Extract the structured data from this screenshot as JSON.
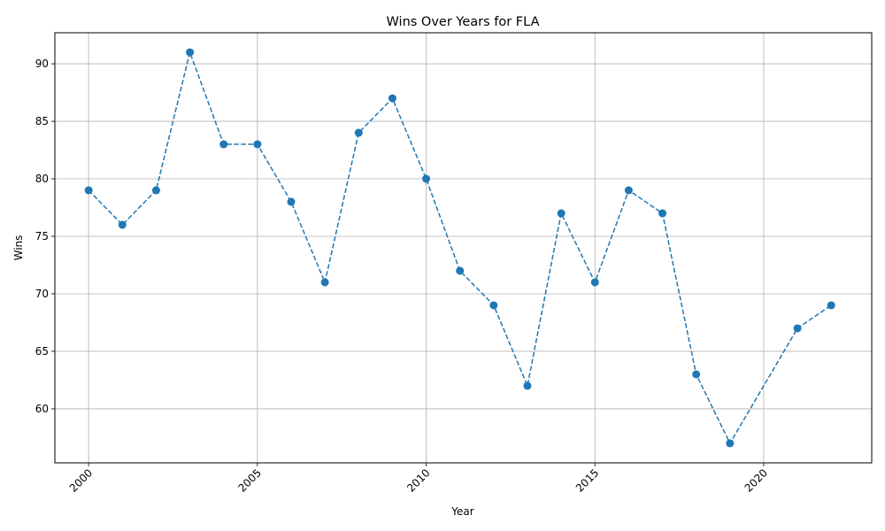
{
  "chart_data": {
    "type": "line",
    "title": "Wins Over Years for FLA",
    "xlabel": "Year",
    "ylabel": "Wins",
    "xlim": [
      1999,
      2023.2
    ],
    "ylim": [
      55.3,
      92.7
    ],
    "xticks": [
      2000,
      2005,
      2010,
      2015,
      2020
    ],
    "xtick_labels": [
      "2000",
      "2005",
      "2010",
      "2015",
      "2020"
    ],
    "yticks": [
      60,
      65,
      70,
      75,
      80,
      85,
      90
    ],
    "ytick_labels": [
      "60",
      "65",
      "70",
      "75",
      "80",
      "85",
      "90"
    ],
    "grid": true,
    "line_style": "dashed",
    "marker": "circle",
    "color": "#1f77b4",
    "x": [
      2000,
      2001,
      2002,
      2003,
      2004,
      2005,
      2006,
      2007,
      2008,
      2009,
      2010,
      2011,
      2012,
      2013,
      2014,
      2015,
      2016,
      2017,
      2018,
      2019,
      2021,
      2022
    ],
    "y": [
      79,
      76,
      79,
      91,
      83,
      83,
      78,
      71,
      84,
      87,
      80,
      72,
      69,
      62,
      77,
      71,
      79,
      77,
      63,
      57,
      67,
      69
    ]
  }
}
